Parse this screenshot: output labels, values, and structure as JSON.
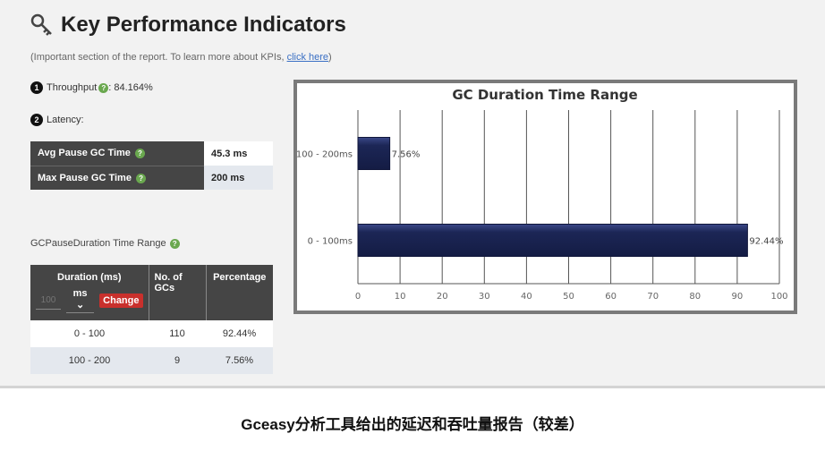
{
  "header": {
    "title": "Key Performance Indicators",
    "subtitle_prefix": "(Important section of the report. To learn more about KPIs, ",
    "subtitle_link": "click here",
    "subtitle_suffix": ")"
  },
  "kpis": {
    "throughput": {
      "number": "1",
      "label": "Throughput",
      "value": " : 84.164%"
    },
    "latency": {
      "number": "2",
      "label": "Latency:"
    }
  },
  "latency_table": [
    {
      "label": "Avg Pause GC Time",
      "value": "45.3 ms"
    },
    {
      "label": "Max Pause GC Time",
      "value": "200 ms"
    }
  ],
  "gc_pause": {
    "label": "GCPauseDuration Time Range",
    "headers": {
      "duration": "Duration (ms)",
      "count": "No. of GCs",
      "percentage": "Percentage"
    },
    "input_placeholder": "100",
    "unit": "ms",
    "change_button": "Change",
    "rows": [
      {
        "range": "0 - 100",
        "count": "110",
        "pct": "92.44%"
      },
      {
        "range": "100 - 200",
        "count": "9",
        "pct": "7.56%"
      }
    ]
  },
  "chart_data": {
    "type": "bar",
    "orientation": "horizontal",
    "title": "GC Duration Time Range",
    "categories": [
      "100 - 200ms",
      "0 - 100ms"
    ],
    "values": [
      7.56,
      92.44
    ],
    "data_labels": [
      "7.56%",
      "92.44%"
    ],
    "xlim": [
      0,
      100
    ],
    "xticks": [
      0,
      10,
      20,
      30,
      40,
      50,
      60,
      70,
      80,
      90,
      100
    ],
    "grid": "vertical",
    "bar_color": "#1c2656"
  },
  "caption": "Gceasy分析工具给出的延迟和吞吐量报告（较差）"
}
